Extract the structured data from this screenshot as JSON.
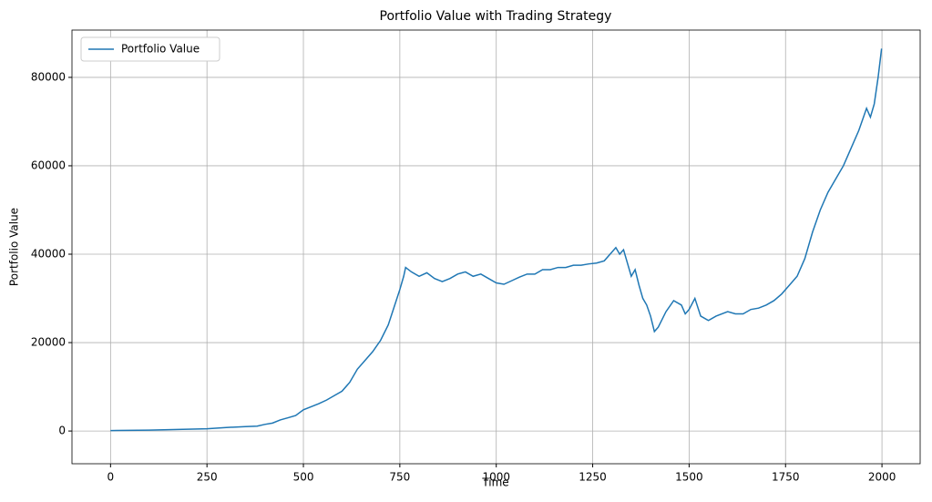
{
  "chart_data": {
    "type": "line",
    "title": "Portfolio Value with Trading Strategy",
    "xlabel": "Time",
    "ylabel": "Portfolio Value",
    "x": [
      0,
      100,
      200,
      250,
      300,
      350,
      380,
      400,
      420,
      440,
      460,
      480,
      500,
      520,
      540,
      560,
      580,
      600,
      620,
      640,
      660,
      680,
      700,
      720,
      735,
      750,
      760,
      765,
      780,
      800,
      820,
      840,
      860,
      880,
      900,
      920,
      940,
      960,
      980,
      1000,
      1020,
      1040,
      1060,
      1080,
      1100,
      1120,
      1140,
      1160,
      1180,
      1200,
      1220,
      1240,
      1260,
      1280,
      1300,
      1310,
      1320,
      1330,
      1340,
      1350,
      1360,
      1370,
      1380,
      1390,
      1400,
      1410,
      1420,
      1440,
      1460,
      1480,
      1490,
      1500,
      1515,
      1530,
      1550,
      1570,
      1600,
      1620,
      1640,
      1660,
      1680,
      1700,
      1720,
      1740,
      1760,
      1780,
      1800,
      1820,
      1840,
      1860,
      1880,
      1900,
      1920,
      1940,
      1960,
      1970,
      1980,
      1990,
      1999
    ],
    "series": [
      {
        "name": "Portfolio Value",
        "color": "#1f77b4",
        "values": [
          100,
          200,
          400,
          500,
          800,
          1000,
          1100,
          1500,
          1800,
          2500,
          3000,
          3500,
          4800,
          5500,
          6200,
          7000,
          8000,
          9000,
          11000,
          14000,
          16000,
          18000,
          20500,
          24000,
          28000,
          32000,
          35000,
          37000,
          36000,
          35000,
          35800,
          34500,
          33800,
          34500,
          35500,
          36000,
          35000,
          35500,
          34500,
          33500,
          33200,
          34000,
          34800,
          35500,
          35500,
          36500,
          36500,
          37000,
          37000,
          37500,
          37500,
          37800,
          38000,
          38500,
          40500,
          41500,
          40000,
          41000,
          38000,
          35000,
          36500,
          33000,
          30000,
          28500,
          26000,
          22500,
          23500,
          27000,
          29500,
          28500,
          26500,
          27500,
          30000,
          26000,
          25000,
          26000,
          27000,
          26500,
          26500,
          27500,
          27800,
          28500,
          29500,
          31000,
          33000,
          35000,
          39000,
          45000,
          50000,
          54000,
          57000,
          60000,
          64000,
          68000,
          73000,
          71000,
          74000,
          80000,
          86500
        ]
      }
    ],
    "xlim": [
      -100,
      2099
    ],
    "ylim": [
      -7400,
      90700
    ],
    "xticks": [
      0,
      250,
      500,
      750,
      1000,
      1250,
      1500,
      1750,
      2000
    ],
    "yticks": [
      0,
      20000,
      40000,
      60000,
      80000
    ],
    "grid": true,
    "legend": "upper-left"
  }
}
